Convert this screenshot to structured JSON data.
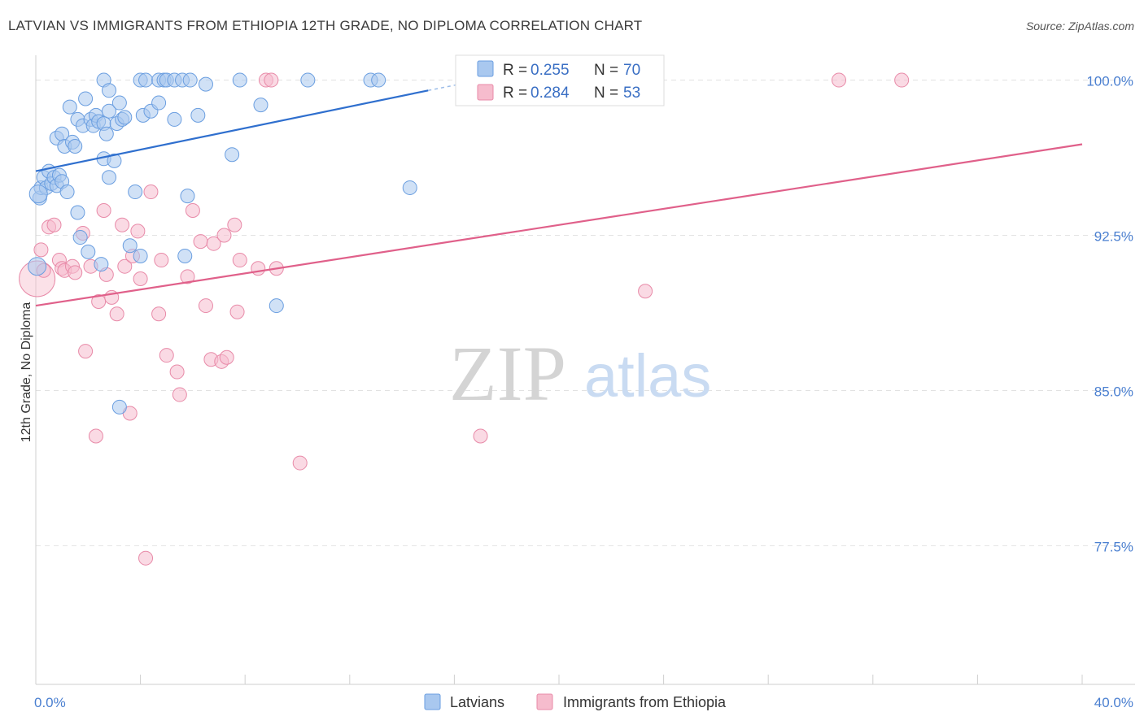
{
  "header": {
    "title": "LATVIAN VS IMMIGRANTS FROM ETHIOPIA 12TH GRADE, NO DIPLOMA CORRELATION CHART",
    "source": "Source: ZipAtlas.com"
  },
  "watermark": {
    "zip": "ZIP",
    "atlas": "atlas"
  },
  "colors": {
    "blue_fill": "#a9c8ef",
    "blue_stroke": "#6a9ee0",
    "blue_line": "#2f6fce",
    "pink_fill": "#f6bccd",
    "pink_stroke": "#e88aa8",
    "pink_line": "#e0608a",
    "grid": "#e2e2e2",
    "tick_text": "#4a7fd0"
  },
  "legend": {
    "r_label": "R =",
    "n_label": "N =",
    "rows": [
      {
        "series": "Latvians",
        "r": "0.255",
        "n": "70"
      },
      {
        "series": "Immigrants from Ethiopia",
        "r": "0.284",
        "n": "53"
      }
    ]
  },
  "chart_data": {
    "type": "scatter",
    "title": "LATVIAN VS IMMIGRANTS FROM ETHIOPIA 12TH GRADE, NO DIPLOMA CORRELATION CHART",
    "xlabel": "",
    "ylabel": "12th Grade, No Diploma",
    "xlim": [
      0,
      40
    ],
    "ylim": [
      70.8,
      101.2
    ],
    "x_tick_labels": [
      {
        "value": 0,
        "label": "0.0%"
      },
      {
        "value": 40,
        "label": "40.0%"
      }
    ],
    "x_minor_ticks": [
      0,
      4,
      8,
      12,
      16,
      20,
      24,
      28,
      32,
      36,
      40
    ],
    "y_ticks": [
      {
        "value": 100,
        "label": "100.0%"
      },
      {
        "value": 92.5,
        "label": "92.5%"
      },
      {
        "value": 85,
        "label": "85.0%"
      },
      {
        "value": 77.5,
        "label": "77.5%"
      }
    ],
    "grid": true,
    "legend_position": "top-center",
    "series": [
      {
        "name": "Latvians",
        "color": "#a9c8ef",
        "r": 0.255,
        "n": 70,
        "trend": {
          "x": [
            0,
            15
          ],
          "y": [
            95.6,
            99.5
          ],
          "dashed_extension_to": [
            16.2,
            99.8
          ]
        },
        "points": [
          [
            0.15,
            94.3
          ],
          [
            0.2,
            94.8
          ],
          [
            0.3,
            95.3
          ],
          [
            0.4,
            94.8
          ],
          [
            0.5,
            95.6
          ],
          [
            0.6,
            95.0
          ],
          [
            0.7,
            95.3
          ],
          [
            0.8,
            94.9
          ],
          [
            0.9,
            95.4
          ],
          [
            1.0,
            95.1
          ],
          [
            1.2,
            94.6
          ],
          [
            0.8,
            97.2
          ],
          [
            1.0,
            97.4
          ],
          [
            1.1,
            96.8
          ],
          [
            1.3,
            98.7
          ],
          [
            1.4,
            97.0
          ],
          [
            1.5,
            96.8
          ],
          [
            1.6,
            93.6
          ],
          [
            1.7,
            92.4
          ],
          [
            1.6,
            98.1
          ],
          [
            1.8,
            97.8
          ],
          [
            1.9,
            99.1
          ],
          [
            2.0,
            91.7
          ],
          [
            2.1,
            98.1
          ],
          [
            2.2,
            97.8
          ],
          [
            2.3,
            98.3
          ],
          [
            2.4,
            98.0
          ],
          [
            2.5,
            91.1
          ],
          [
            2.6,
            96.2
          ],
          [
            2.6,
            97.9
          ],
          [
            2.7,
            97.4
          ],
          [
            2.8,
            95.3
          ],
          [
            2.8,
            98.5
          ],
          [
            2.6,
            100.0
          ],
          [
            2.8,
            99.5
          ],
          [
            3.0,
            96.1
          ],
          [
            3.1,
            97.9
          ],
          [
            3.2,
            98.9
          ],
          [
            3.3,
            98.1
          ],
          [
            3.4,
            98.2
          ],
          [
            3.2,
            84.2
          ],
          [
            3.6,
            92.0
          ],
          [
            3.8,
            94.6
          ],
          [
            4.0,
            91.5
          ],
          [
            4.1,
            98.3
          ],
          [
            4.0,
            100.0
          ],
          [
            4.2,
            100.0
          ],
          [
            4.4,
            98.5
          ],
          [
            4.7,
            98.9
          ],
          [
            4.7,
            100.0
          ],
          [
            4.9,
            100.0
          ],
          [
            5.0,
            100.0
          ],
          [
            5.3,
            100.0
          ],
          [
            5.3,
            98.1
          ],
          [
            5.6,
            100.0
          ],
          [
            5.7,
            91.5
          ],
          [
            5.8,
            94.4
          ],
          [
            5.9,
            100.0
          ],
          [
            6.2,
            98.3
          ],
          [
            6.5,
            99.8
          ],
          [
            7.5,
            96.4
          ],
          [
            7.8,
            100.0
          ],
          [
            8.6,
            98.8
          ],
          [
            9.2,
            89.1
          ],
          [
            10.4,
            100.0
          ],
          [
            12.8,
            100.0
          ],
          [
            13.1,
            100.0
          ],
          [
            14.3,
            94.8
          ],
          [
            0.05,
            91.0
          ],
          [
            0.1,
            94.5
          ]
        ]
      },
      {
        "name": "Immigrants from Ethiopia",
        "color": "#f6bccd",
        "r": 0.284,
        "n": 53,
        "trend": {
          "x": [
            0,
            40
          ],
          "y": [
            89.1,
            96.9
          ]
        },
        "points": [
          [
            0.05,
            90.4
          ],
          [
            0.2,
            91.8
          ],
          [
            0.3,
            90.8
          ],
          [
            0.5,
            92.9
          ],
          [
            0.7,
            93.0
          ],
          [
            0.9,
            91.3
          ],
          [
            1.0,
            90.9
          ],
          [
            1.1,
            90.8
          ],
          [
            1.4,
            91.0
          ],
          [
            1.5,
            90.7
          ],
          [
            1.8,
            92.6
          ],
          [
            1.9,
            86.9
          ],
          [
            2.1,
            91.0
          ],
          [
            2.3,
            82.8
          ],
          [
            2.4,
            89.3
          ],
          [
            2.6,
            93.7
          ],
          [
            2.7,
            90.6
          ],
          [
            2.9,
            89.5
          ],
          [
            3.1,
            88.7
          ],
          [
            3.3,
            93.0
          ],
          [
            3.4,
            91.0
          ],
          [
            3.6,
            83.9
          ],
          [
            3.7,
            91.5
          ],
          [
            3.9,
            92.7
          ],
          [
            4.0,
            90.4
          ],
          [
            4.2,
            76.9
          ],
          [
            4.4,
            94.6
          ],
          [
            4.7,
            88.7
          ],
          [
            4.8,
            91.3
          ],
          [
            5.0,
            86.7
          ],
          [
            5.4,
            85.9
          ],
          [
            5.5,
            84.8
          ],
          [
            5.8,
            90.5
          ],
          [
            6.0,
            93.7
          ],
          [
            6.3,
            92.2
          ],
          [
            6.5,
            89.1
          ],
          [
            6.7,
            86.5
          ],
          [
            6.8,
            92.1
          ],
          [
            7.1,
            86.4
          ],
          [
            7.2,
            92.5
          ],
          [
            7.3,
            86.6
          ],
          [
            7.6,
            93.0
          ],
          [
            7.7,
            88.8
          ],
          [
            7.8,
            91.3
          ],
          [
            8.5,
            90.9
          ],
          [
            8.8,
            100.0
          ],
          [
            9.0,
            100.0
          ],
          [
            9.2,
            90.9
          ],
          [
            10.1,
            81.5
          ],
          [
            17.0,
            82.8
          ],
          [
            23.3,
            89.8
          ],
          [
            30.7,
            100.0
          ],
          [
            33.1,
            100.0
          ]
        ]
      }
    ]
  },
  "bottom_legend": [
    "Latvians",
    "Immigrants from Ethiopia"
  ]
}
